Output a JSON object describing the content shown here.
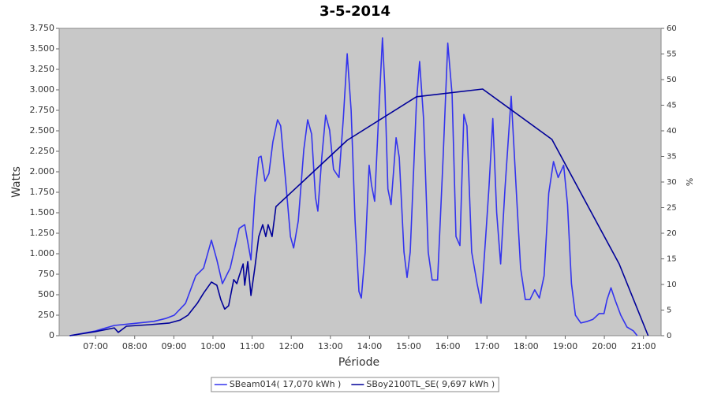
{
  "chart_data": {
    "type": "line",
    "title": "3-5-2014",
    "x_label": "Période",
    "y_label": "Watts",
    "y2_label": "%",
    "xlim": [
      6.07,
      21.45
    ],
    "xticks": [
      {
        "value": 7,
        "label": "07:00"
      },
      {
        "value": 8,
        "label": "08:00"
      },
      {
        "value": 9,
        "label": "09:00"
      },
      {
        "value": 10,
        "label": "10:00"
      },
      {
        "value": 11,
        "label": "11:00"
      },
      {
        "value": 12,
        "label": "12:00"
      },
      {
        "value": 13,
        "label": "13:00"
      },
      {
        "value": 14,
        "label": "14:00"
      },
      {
        "value": 15,
        "label": "15:00"
      },
      {
        "value": 16,
        "label": "16:00"
      },
      {
        "value": 17,
        "label": "17:00"
      },
      {
        "value": 18,
        "label": "18:00"
      },
      {
        "value": 19,
        "label": "19:00"
      },
      {
        "value": 20,
        "label": "20:00"
      },
      {
        "value": 21,
        "label": "21:00"
      }
    ],
    "ylim": [
      0,
      3750
    ],
    "yticks": [
      0,
      250,
      500,
      750,
      {
        "value": 1000,
        "label": "1.000"
      },
      {
        "value": 1250,
        "label": "1.250"
      },
      {
        "value": 1500,
        "label": "1.500"
      },
      {
        "value": 1750,
        "label": "1.750"
      },
      {
        "value": 2000,
        "label": "2.000"
      },
      {
        "value": 2250,
        "label": "2.250"
      },
      {
        "value": 2500,
        "label": "2.500"
      },
      {
        "value": 2750,
        "label": "2.750"
      },
      {
        "value": 3000,
        "label": "3.000"
      },
      {
        "value": 3250,
        "label": "3.250"
      },
      {
        "value": 3500,
        "label": "3.500"
      },
      {
        "value": 3750,
        "label": "3.750"
      }
    ],
    "y2lim": [
      0,
      60
    ],
    "y2ticks": [
      0,
      5,
      10,
      15,
      20,
      25,
      30,
      35,
      40,
      45,
      50,
      55,
      60
    ],
    "background": "#c8c8c8",
    "series": [
      {
        "name": "SBeam014( 17,070 kWh )",
        "color": "#3333ee",
        "x": [
          6.34,
          7.0,
          7.48,
          7.99,
          8.49,
          8.79,
          9.01,
          9.3,
          9.56,
          9.76,
          9.96,
          10.1,
          10.24,
          10.44,
          10.67,
          10.81,
          10.97,
          11.07,
          11.17,
          11.23,
          11.33,
          11.43,
          11.53,
          11.65,
          11.73,
          11.85,
          11.98,
          12.06,
          12.18,
          12.32,
          12.42,
          12.52,
          12.62,
          12.68,
          12.78,
          12.88,
          12.98,
          13.08,
          13.22,
          13.33,
          13.43,
          13.53,
          13.63,
          13.73,
          13.79,
          13.89,
          13.99,
          14.05,
          14.13,
          14.23,
          14.33,
          14.39,
          14.47,
          14.55,
          14.68,
          14.76,
          14.88,
          14.96,
          15.04,
          15.2,
          15.28,
          15.38,
          15.5,
          15.6,
          15.74,
          15.88,
          16.0,
          16.11,
          16.21,
          16.31,
          16.41,
          16.49,
          16.61,
          16.75,
          16.85,
          16.97,
          17.05,
          17.15,
          17.25,
          17.35,
          17.46,
          17.62,
          17.76,
          17.86,
          17.98,
          18.1,
          18.22,
          18.34,
          18.46,
          18.58,
          18.7,
          18.82,
          18.96,
          19.06,
          19.16,
          19.26,
          19.4,
          19.57,
          19.71,
          19.87,
          19.99,
          20.07,
          20.17,
          20.27,
          20.42,
          20.58,
          20.74,
          20.84
        ],
        "values": [
          0,
          58,
          125,
          150,
          175,
          210,
          250,
          395,
          730,
          825,
          1165,
          925,
          635,
          825,
          1310,
          1355,
          925,
          1690,
          2175,
          2190,
          1885,
          1980,
          2365,
          2635,
          2560,
          1930,
          1210,
          1070,
          1400,
          2270,
          2635,
          2460,
          1690,
          1520,
          2175,
          2690,
          2510,
          2030,
          1930,
          2650,
          3440,
          2750,
          1400,
          540,
          460,
          1020,
          2080,
          1840,
          1640,
          2650,
          3635,
          3040,
          1790,
          1600,
          2415,
          2175,
          1020,
          710,
          1020,
          2850,
          3345,
          2650,
          1020,
          680,
          680,
          2175,
          3570,
          2940,
          1210,
          1100,
          2700,
          2560,
          1020,
          635,
          395,
          1210,
          1790,
          2650,
          1500,
          875,
          1790,
          2920,
          1690,
          825,
          440,
          440,
          560,
          460,
          730,
          1740,
          2125,
          1930,
          2080,
          1600,
          635,
          250,
          155,
          175,
          200,
          270,
          270,
          440,
          585,
          440,
          250,
          105,
          60,
          0
        ]
      },
      {
        "name": "SBoy2100TL_SE( 9,697 kWh )",
        "color": "#000099",
        "x": [
          6.34,
          7.0,
          7.48,
          7.58,
          7.79,
          8.39,
          8.89,
          9.16,
          9.36,
          9.6,
          9.76,
          9.96,
          10.1,
          10.2,
          10.3,
          10.4,
          10.53,
          10.61,
          10.67,
          10.77,
          10.81,
          10.89,
          10.97,
          11.07,
          11.17,
          11.27,
          11.35,
          11.41,
          11.51,
          11.61,
          13.43,
          15.2,
          16.89,
          18.66,
          20.38,
          21.12
        ],
        "values": [
          0,
          50,
          95,
          40,
          115,
          135,
          155,
          190,
          250,
          395,
          520,
          655,
          615,
          440,
          325,
          365,
          685,
          635,
          730,
          875,
          615,
          905,
          490,
          825,
          1210,
          1355,
          1210,
          1355,
          1210,
          1575,
          2385,
          2915,
          3010,
          2395,
          875,
          0
        ]
      }
    ]
  }
}
